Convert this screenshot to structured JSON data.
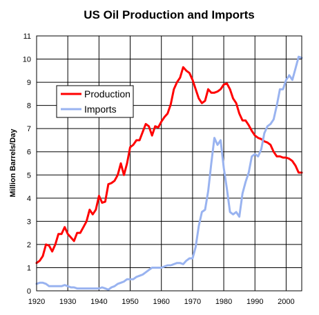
{
  "chart_data": {
    "type": "line",
    "title": "US Oil Production and Imports",
    "xlabel": "",
    "ylabel": "Million Barrels/Day",
    "xlim": [
      1920,
      2005
    ],
    "ylim": [
      0,
      11
    ],
    "x_ticks": [
      1920,
      1930,
      1940,
      1950,
      1960,
      1970,
      1980,
      1990,
      2000
    ],
    "y_ticks": [
      0,
      1,
      2,
      3,
      4,
      5,
      6,
      7,
      8,
      9,
      10,
      11
    ],
    "grid": true,
    "legend_placement": "upper-left",
    "series": [
      {
        "name": "Production",
        "color": "#ff0000",
        "x": [
          1920,
          1921,
          1922,
          1923,
          1924,
          1925,
          1926,
          1927,
          1928,
          1929,
          1930,
          1931,
          1932,
          1933,
          1934,
          1935,
          1936,
          1937,
          1938,
          1939,
          1940,
          1941,
          1942,
          1943,
          1944,
          1945,
          1946,
          1947,
          1948,
          1949,
          1950,
          1951,
          1952,
          1953,
          1954,
          1955,
          1956,
          1957,
          1958,
          1959,
          1960,
          1961,
          1962,
          1963,
          1964,
          1965,
          1966,
          1967,
          1968,
          1969,
          1970,
          1971,
          1972,
          1973,
          1974,
          1975,
          1976,
          1977,
          1978,
          1979,
          1980,
          1981,
          1982,
          1983,
          1984,
          1985,
          1986,
          1987,
          1988,
          1989,
          1990,
          1991,
          1992,
          1993,
          1994,
          1995,
          1996,
          1997,
          1998,
          1999,
          2000,
          2001,
          2002,
          2003,
          2004,
          2005
        ],
        "values": [
          1.2,
          1.3,
          1.5,
          2.0,
          1.95,
          1.7,
          2.0,
          2.45,
          2.45,
          2.75,
          2.45,
          2.3,
          2.15,
          2.5,
          2.5,
          2.75,
          3.0,
          3.5,
          3.3,
          3.5,
          4.1,
          3.8,
          3.85,
          4.6,
          4.65,
          4.75,
          5.0,
          5.5,
          5.0,
          5.5,
          6.2,
          6.3,
          6.5,
          6.5,
          6.85,
          7.2,
          7.1,
          6.7,
          7.1,
          7.05,
          7.3,
          7.5,
          7.65,
          8.05,
          8.7,
          9.0,
          9.2,
          9.65,
          9.5,
          9.4,
          9.1,
          8.7,
          8.3,
          8.1,
          8.2,
          8.7,
          8.55,
          8.55,
          8.6,
          8.7,
          8.9,
          8.95,
          8.7,
          8.3,
          8.1,
          7.65,
          7.35,
          7.35,
          7.15,
          6.9,
          6.7,
          6.6,
          6.55,
          6.45,
          6.4,
          6.3,
          6.0,
          5.8,
          5.8,
          5.75,
          5.75,
          5.7,
          5.6,
          5.4,
          5.1,
          5.1
        ]
      },
      {
        "name": "Imports",
        "color": "#99b3f0",
        "x": [
          1920,
          1921,
          1922,
          1923,
          1924,
          1925,
          1926,
          1927,
          1928,
          1929,
          1930,
          1931,
          1932,
          1933,
          1934,
          1935,
          1936,
          1937,
          1938,
          1939,
          1940,
          1941,
          1942,
          1943,
          1944,
          1945,
          1946,
          1947,
          1948,
          1949,
          1950,
          1951,
          1952,
          1953,
          1954,
          1955,
          1956,
          1957,
          1958,
          1959,
          1960,
          1961,
          1962,
          1963,
          1964,
          1965,
          1966,
          1967,
          1968,
          1969,
          1970,
          1971,
          1972,
          1973,
          1974,
          1975,
          1976,
          1977,
          1978,
          1979,
          1980,
          1981,
          1982,
          1983,
          1984,
          1985,
          1986,
          1987,
          1988,
          1989,
          1990,
          1991,
          1992,
          1993,
          1994,
          1995,
          1996,
          1997,
          1998,
          1999,
          2000,
          2001,
          2002,
          2003,
          2004,
          2005
        ],
        "values": [
          0.3,
          0.35,
          0.35,
          0.3,
          0.2,
          0.2,
          0.2,
          0.2,
          0.2,
          0.25,
          0.2,
          0.15,
          0.15,
          0.1,
          0.1,
          0.1,
          0.1,
          0.1,
          0.1,
          0.1,
          0.1,
          0.15,
          0.1,
          0.05,
          0.15,
          0.2,
          0.3,
          0.35,
          0.4,
          0.5,
          0.5,
          0.5,
          0.6,
          0.65,
          0.7,
          0.8,
          0.9,
          1.0,
          1.0,
          1.0,
          1.0,
          1.05,
          1.1,
          1.1,
          1.15,
          1.2,
          1.2,
          1.15,
          1.3,
          1.4,
          1.4,
          1.9,
          2.8,
          3.4,
          3.5,
          4.3,
          5.5,
          6.6,
          6.3,
          6.5,
          5.3,
          4.4,
          3.4,
          3.3,
          3.4,
          3.2,
          4.2,
          4.7,
          5.1,
          5.8,
          5.9,
          5.8,
          6.1,
          6.8,
          7.1,
          7.2,
          7.4,
          8.0,
          8.7,
          8.7,
          9.1,
          9.3,
          9.1,
          9.6,
          10.1,
          10.05
        ]
      }
    ]
  }
}
